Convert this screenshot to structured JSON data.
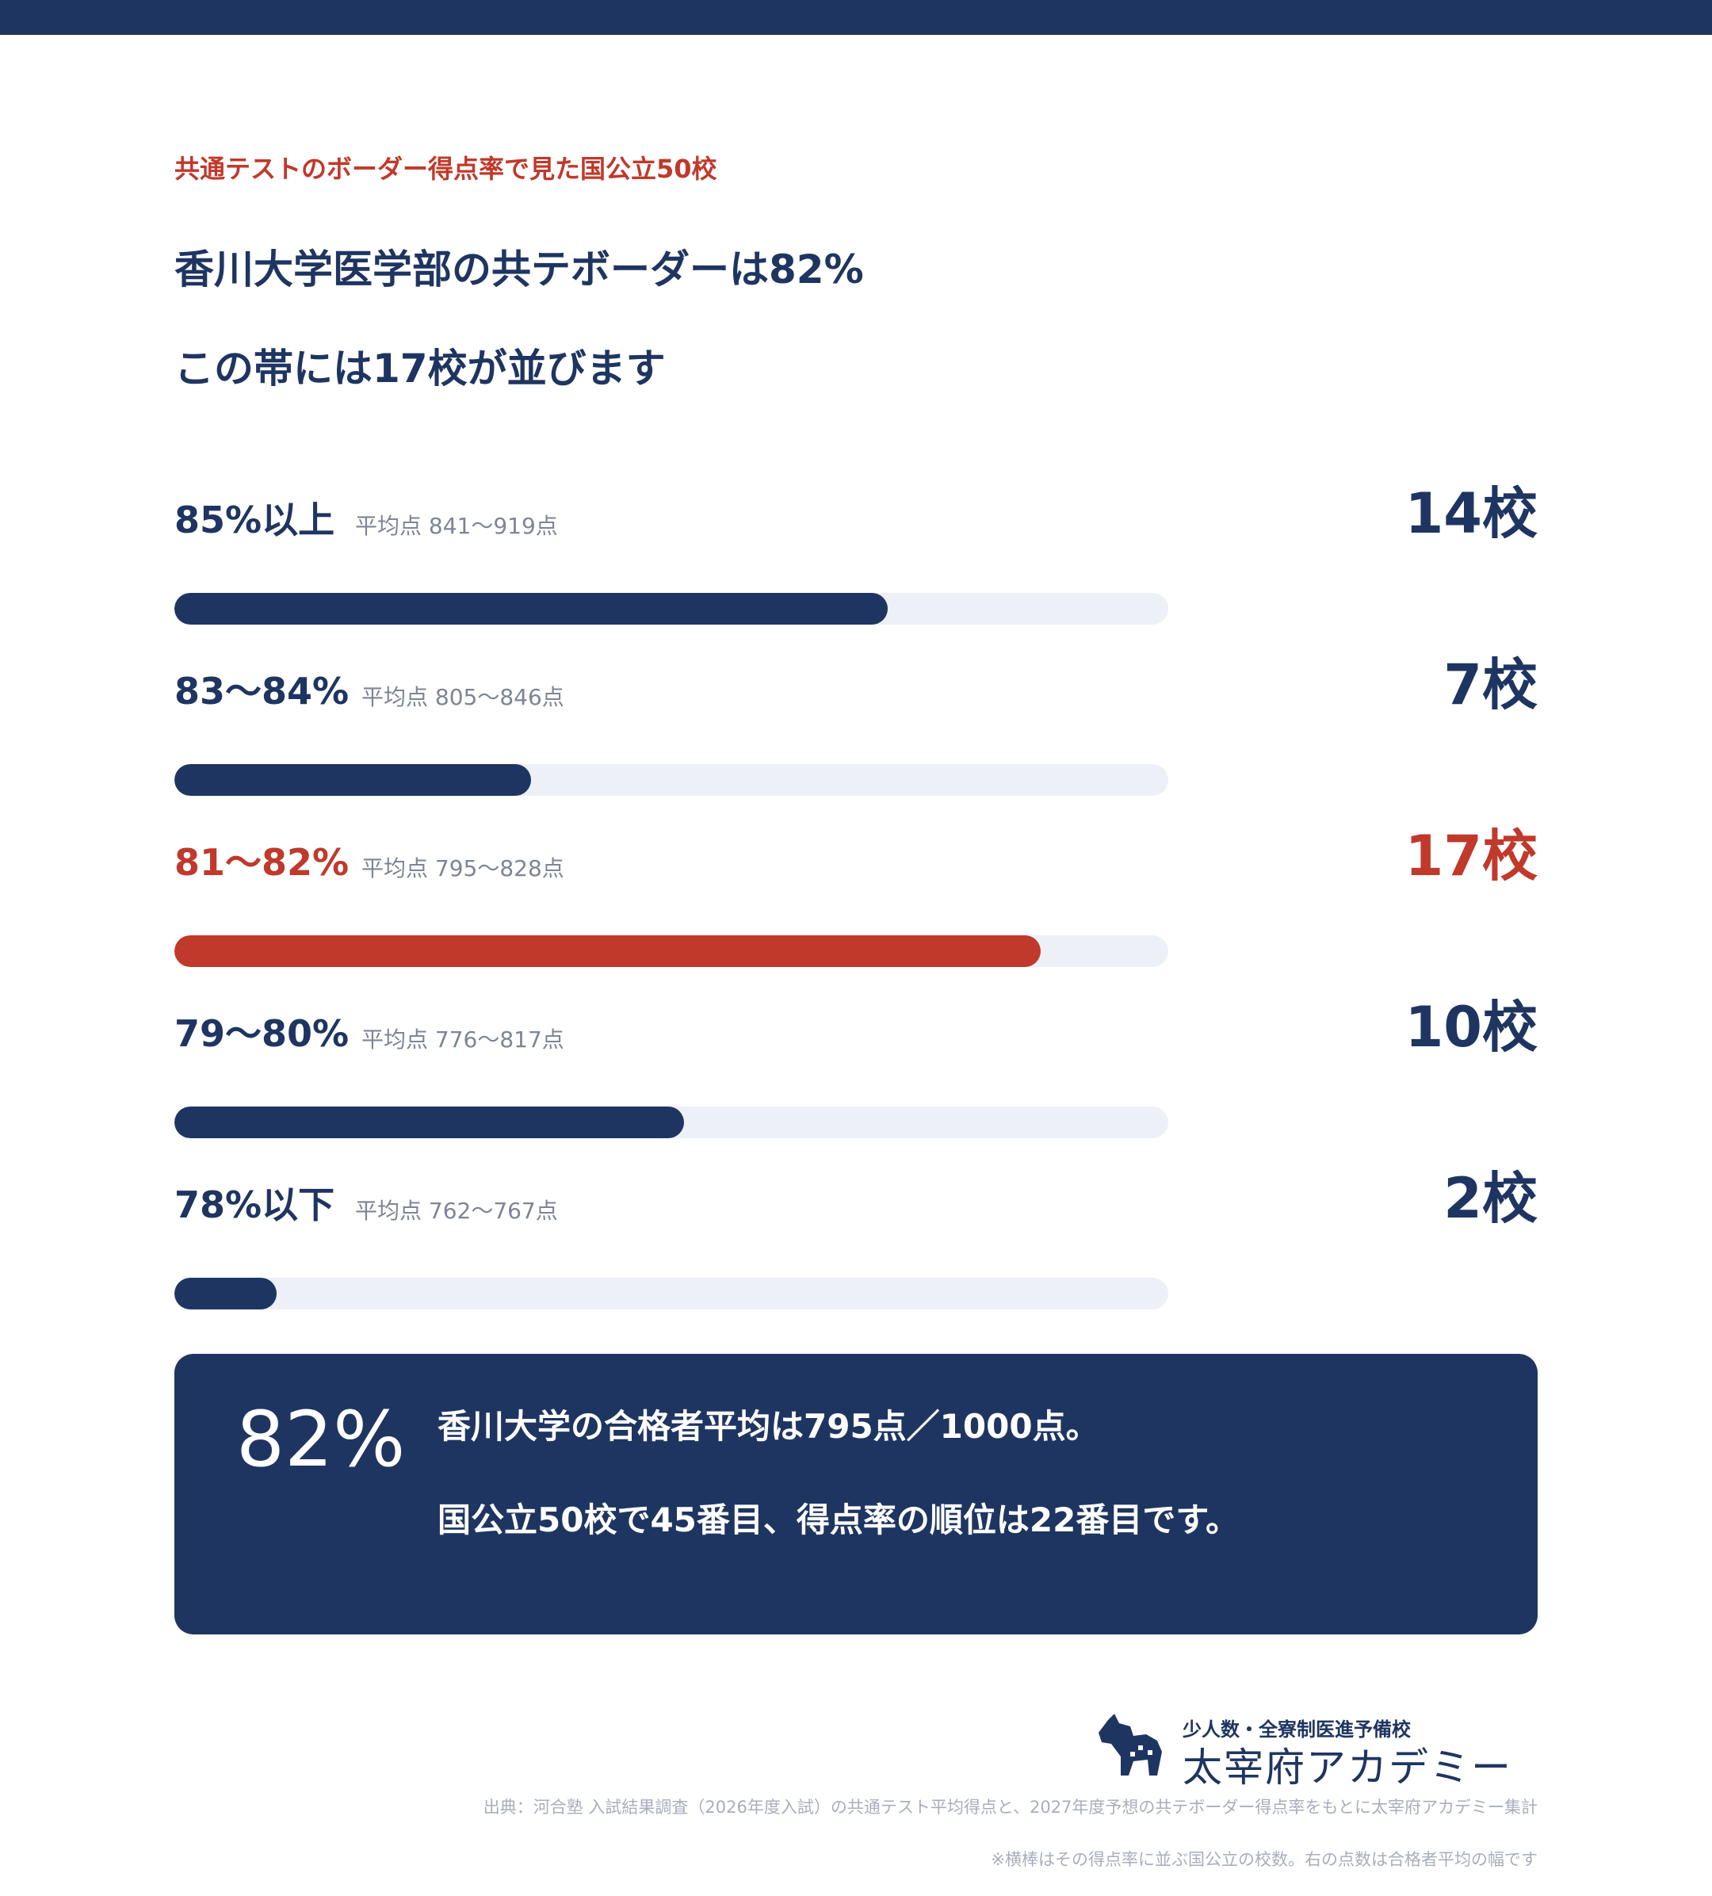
{
  "header": {
    "kicker": "共通テストのボーダー得点率で見た国公立50校",
    "headline_1": "香川大学医学部の共テボーダーは82%",
    "headline_2": "この帯には17校が並びます"
  },
  "colors": {
    "navy": "#1f3561",
    "highlight": "#c0392b",
    "track": "#edf0f7"
  },
  "chart_data": {
    "type": "bar",
    "orientation": "horizontal",
    "categories": [
      "85%以上",
      "83〜84%",
      "81〜82%",
      "79〜80%",
      "78%以下"
    ],
    "ranges": [
      "平均点 841〜919点",
      "平均点 805〜846点",
      "平均点 795〜828点",
      "平均点 776〜817点",
      "平均点 762〜767点"
    ],
    "values": [
      14,
      7,
      17,
      10,
      2
    ],
    "value_labels": [
      "14校",
      "7校",
      "17校",
      "10校",
      "2校"
    ],
    "highlight_index": 2,
    "xlim": [
      0,
      19.5
    ]
  },
  "callout": {
    "big": "82%",
    "line_1": "香川大学の合格者平均は795点／1000点。",
    "line_2": "国公立50校で45番目、得点率の順位は22番目です。"
  },
  "logo": {
    "tagline": "少人数・全寮制医進予備校",
    "name": "太宰府アカデミー",
    "icon": "dog-icon"
  },
  "footer": {
    "source": "出典：河合塾 入試結果調査（2026年度入試）の共通テスト平均得点と、2027年度予想の共テボーダー得点率をもとに太宰府アカデミー集計",
    "note": "※横棒はその得点率に並ぶ国公立の校数。右の点数は合格者平均の幅です"
  }
}
